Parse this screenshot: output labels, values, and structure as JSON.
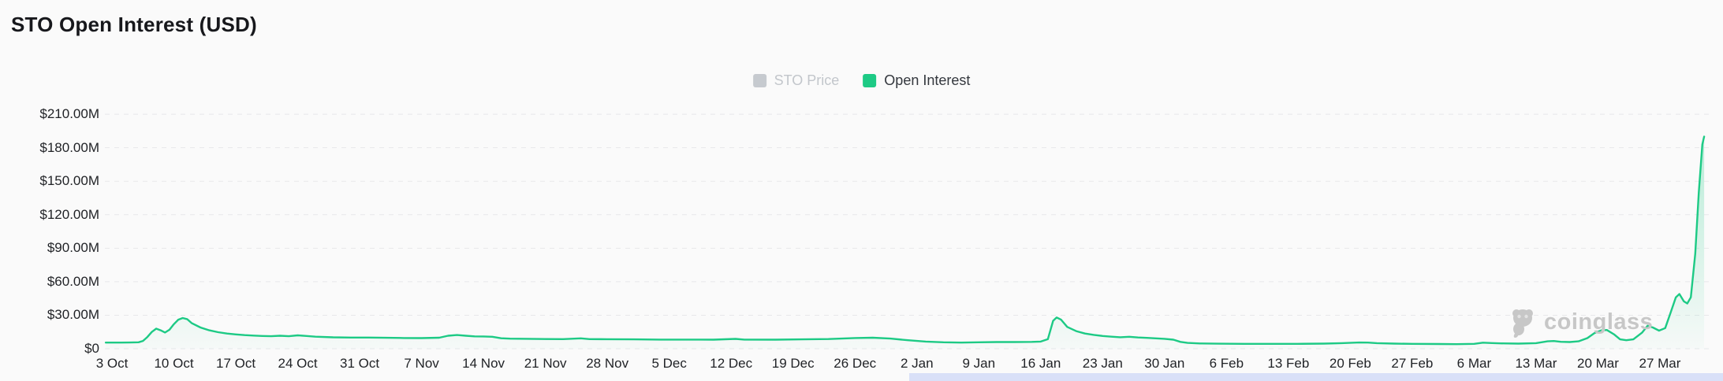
{
  "page": {
    "background": "#fafafa"
  },
  "header": {
    "title": "STO Open Interest (USD)"
  },
  "legend": {
    "items": [
      {
        "label": "STO Price",
        "swatch_color": "#c6cacf",
        "text_color": "#c2c6cb",
        "active": false
      },
      {
        "label": "Open Interest",
        "swatch_color": "#1dca85",
        "text_color": "#33373d",
        "active": true
      }
    ]
  },
  "watermark": {
    "text": "coinglass",
    "icon": "coinglass-gorilla-logo",
    "color": "#c7c7c7"
  },
  "scrollbar": {
    "color": "#d9e0f8"
  },
  "chart_data": {
    "type": "area",
    "title": "STO Open Interest (USD)",
    "grid": "horizontal-dashed",
    "legend_position": "top-center",
    "x_unit": "days since 3 Oct",
    "ylim": [
      0,
      217
    ],
    "yticks": [
      {
        "value": 210,
        "label": "$210.00M"
      },
      {
        "value": 180,
        "label": "$180.00M"
      },
      {
        "value": 150,
        "label": "$150.00M"
      },
      {
        "value": 120,
        "label": "$120.00M"
      },
      {
        "value": 90,
        "label": "$90.00M"
      },
      {
        "value": 60,
        "label": "$60.00M"
      },
      {
        "value": 30,
        "label": "$30.00M"
      },
      {
        "value": 0,
        "label": "$0"
      }
    ],
    "xticks": [
      {
        "day": 0,
        "label": "3 Oct"
      },
      {
        "day": 7,
        "label": "10 Oct"
      },
      {
        "day": 14,
        "label": "17 Oct"
      },
      {
        "day": 21,
        "label": "24 Oct"
      },
      {
        "day": 28,
        "label": "31 Oct"
      },
      {
        "day": 35,
        "label": "7 Nov"
      },
      {
        "day": 42,
        "label": "14 Nov"
      },
      {
        "day": 49,
        "label": "21 Nov"
      },
      {
        "day": 56,
        "label": "28 Nov"
      },
      {
        "day": 63,
        "label": "5 Dec"
      },
      {
        "day": 70,
        "label": "12 Dec"
      },
      {
        "day": 77,
        "label": "19 Dec"
      },
      {
        "day": 84,
        "label": "26 Dec"
      },
      {
        "day": 91,
        "label": "2 Jan"
      },
      {
        "day": 98,
        "label": "9 Jan"
      },
      {
        "day": 105,
        "label": "16 Jan"
      },
      {
        "day": 112,
        "label": "23 Jan"
      },
      {
        "day": 119,
        "label": "30 Jan"
      },
      {
        "day": 126,
        "label": "6 Feb"
      },
      {
        "day": 133,
        "label": "13 Feb"
      },
      {
        "day": 140,
        "label": "20 Feb"
      },
      {
        "day": 147,
        "label": "27 Feb"
      },
      {
        "day": 154,
        "label": "6 Mar"
      },
      {
        "day": 161,
        "label": "13 Mar"
      },
      {
        "day": 168,
        "label": "20 Mar"
      },
      {
        "day": 175,
        "label": "27 Mar"
      }
    ],
    "inactive_series": [
      {
        "name": "STO Price"
      }
    ],
    "series": [
      {
        "name": "Open Interest",
        "unit": "USD millions",
        "color": "#1dca85",
        "points": [
          [
            -0.7,
            5.5
          ],
          [
            0,
            5.5
          ],
          [
            1,
            5.5
          ],
          [
            2,
            5.6
          ],
          [
            3,
            5.8
          ],
          [
            3.5,
            7
          ],
          [
            4,
            10.5
          ],
          [
            4.5,
            15
          ],
          [
            5,
            18
          ],
          [
            5.5,
            16.5
          ],
          [
            6,
            14.5
          ],
          [
            6.5,
            17
          ],
          [
            7,
            22
          ],
          [
            7.5,
            26
          ],
          [
            8,
            27.5
          ],
          [
            8.5,
            26.5
          ],
          [
            9,
            23
          ],
          [
            10,
            19
          ],
          [
            11,
            16.5
          ],
          [
            12,
            14.8
          ],
          [
            13,
            13.6
          ],
          [
            14,
            12.8
          ],
          [
            15,
            12.2
          ],
          [
            16,
            11.8
          ],
          [
            17,
            11.4
          ],
          [
            18,
            11.2
          ],
          [
            19,
            11.6
          ],
          [
            20,
            11.2
          ],
          [
            21,
            12
          ],
          [
            22,
            11.4
          ],
          [
            23,
            10.8
          ],
          [
            25,
            10.2
          ],
          [
            27,
            10
          ],
          [
            29,
            10
          ],
          [
            31,
            9.8
          ],
          [
            33,
            9.6
          ],
          [
            35,
            9.5
          ],
          [
            37,
            9.9
          ],
          [
            38,
            11.6
          ],
          [
            39,
            12.3
          ],
          [
            40,
            11.6
          ],
          [
            41,
            11.1
          ],
          [
            42,
            11
          ],
          [
            43,
            10.7
          ],
          [
            44,
            9.4
          ],
          [
            45,
            9
          ],
          [
            47,
            8.9
          ],
          [
            49,
            8.7
          ],
          [
            51,
            8.6
          ],
          [
            53,
            9.3
          ],
          [
            54,
            8.6
          ],
          [
            56,
            8.5
          ],
          [
            59,
            8.4
          ],
          [
            62,
            8.2
          ],
          [
            65,
            8.2
          ],
          [
            68,
            8.1
          ],
          [
            70.5,
            8.8
          ],
          [
            71.5,
            8.2
          ],
          [
            75,
            8.1
          ],
          [
            78,
            8.4
          ],
          [
            81,
            8.7
          ],
          [
            84,
            9.6
          ],
          [
            86,
            9.9
          ],
          [
            88,
            9.1
          ],
          [
            90,
            7.6
          ],
          [
            92,
            6.4
          ],
          [
            94,
            5.8
          ],
          [
            96,
            5.5
          ],
          [
            98,
            5.8
          ],
          [
            100,
            6
          ],
          [
            102,
            6
          ],
          [
            104,
            6.1
          ],
          [
            105,
            6.4
          ],
          [
            105.8,
            8.5
          ],
          [
            106.4,
            25
          ],
          [
            106.8,
            28
          ],
          [
            107.3,
            26
          ],
          [
            108,
            19.5
          ],
          [
            109,
            15.8
          ],
          [
            110,
            13.6
          ],
          [
            111,
            12.4
          ],
          [
            112,
            11.4
          ],
          [
            113,
            10.8
          ],
          [
            114,
            10.3
          ],
          [
            115,
            10.7
          ],
          [
            116,
            10.1
          ],
          [
            117,
            9.7
          ],
          [
            118,
            9.3
          ],
          [
            119,
            8.9
          ],
          [
            120,
            8.1
          ],
          [
            120.8,
            6.1
          ],
          [
            121.6,
            5.2
          ],
          [
            123,
            4.7
          ],
          [
            125,
            4.5
          ],
          [
            128,
            4.4
          ],
          [
            131,
            4.4
          ],
          [
            134,
            4.4
          ],
          [
            137,
            4.6
          ],
          [
            139,
            5
          ],
          [
            141,
            5.6
          ],
          [
            142,
            5.5
          ],
          [
            143,
            5
          ],
          [
            145,
            4.6
          ],
          [
            147,
            4.4
          ],
          [
            150,
            4.2
          ],
          [
            152,
            4.1
          ],
          [
            154,
            4.4
          ],
          [
            155,
            5.4
          ],
          [
            156,
            5.1
          ],
          [
            157,
            4.8
          ],
          [
            159,
            4.6
          ],
          [
            161,
            5
          ],
          [
            162.3,
            6.6
          ],
          [
            163,
            6.9
          ],
          [
            163.8,
            6.2
          ],
          [
            164.8,
            6
          ],
          [
            165.8,
            6.6
          ],
          [
            166.8,
            9.5
          ],
          [
            167.6,
            14
          ],
          [
            168.4,
            16.5
          ],
          [
            169,
            16.8
          ],
          [
            169.8,
            13
          ],
          [
            170.5,
            8.4
          ],
          [
            171.2,
            7.6
          ],
          [
            172,
            8.4
          ],
          [
            173,
            14.5
          ],
          [
            173.6,
            20.5
          ],
          [
            174.2,
            19
          ],
          [
            174.9,
            16.2
          ],
          [
            175.6,
            18.5
          ],
          [
            176.2,
            32
          ],
          [
            176.8,
            46
          ],
          [
            177.2,
            49
          ],
          [
            177.7,
            42.5
          ],
          [
            178.1,
            40.5
          ],
          [
            178.5,
            46
          ],
          [
            179,
            85
          ],
          [
            179.4,
            140
          ],
          [
            179.8,
            183
          ],
          [
            180,
            190
          ]
        ]
      }
    ]
  }
}
